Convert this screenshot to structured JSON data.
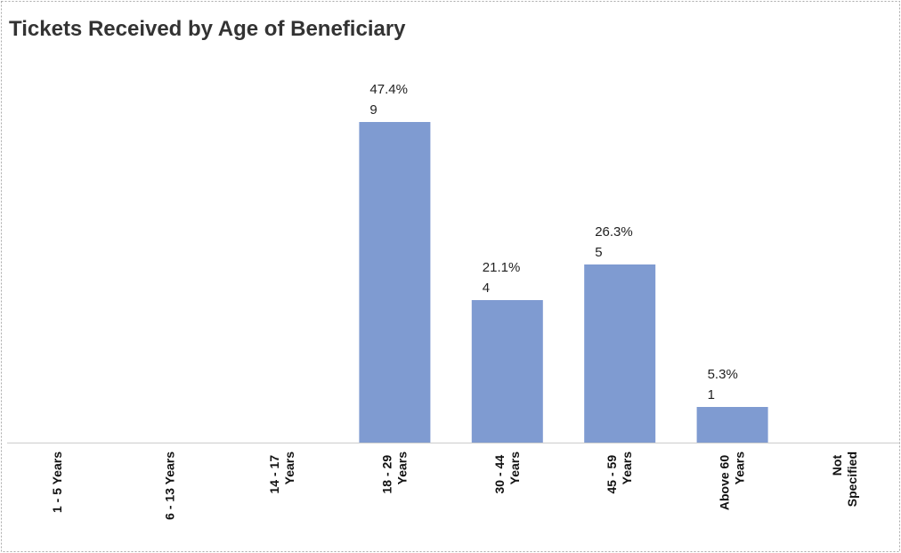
{
  "chart_data": {
    "type": "bar",
    "title": "Tickets Received by Age of Beneficiary",
    "categories": [
      "1 - 5 Years",
      "6 - 13 Years",
      "14 - 17 Years",
      "18 - 29 Years",
      "30 - 44 Years",
      "45 - 59 Years",
      "Above 60 Years",
      "Not Specified"
    ],
    "values": [
      0,
      0,
      0,
      9,
      4,
      5,
      1,
      0
    ],
    "percentages": [
      null,
      null,
      null,
      47.4,
      21.1,
      26.3,
      5.3,
      null
    ],
    "percentage_labels": [
      null,
      null,
      null,
      "47.4%",
      "21.1%",
      "26.3%",
      "5.3%",
      null
    ],
    "color": "#7f9bd1"
  }
}
